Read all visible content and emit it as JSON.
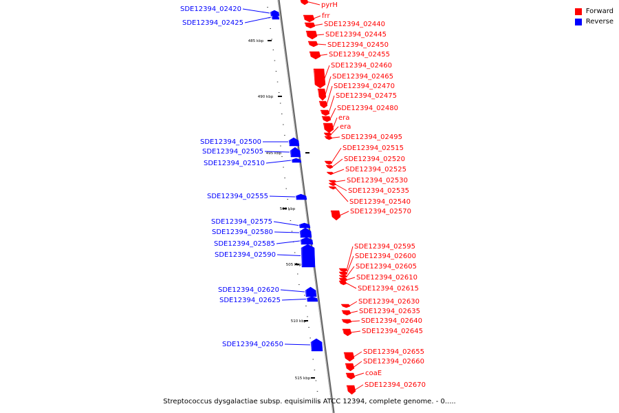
{
  "colors": {
    "forward": "#ff0000",
    "reverse": "#0000ff",
    "backbone": "#888888",
    "tick": "#000000"
  },
  "legend": [
    {
      "label": "Forward",
      "color": "#ff0000"
    },
    {
      "label": "Reverse",
      "color": "#0000ff"
    }
  ],
  "caption": "Streptococcus dysgalactiae subsp. equisimilis ATCC 12394, complete genome. - 0.....",
  "ticks": [
    "485 kbp",
    "490 kbp",
    "495 kbp",
    "500 kbp",
    "505 kbp",
    "510 kbp",
    "515 kbp"
  ],
  "forward_genes": [
    "pyrH",
    "frr",
    "SDE12394_02440",
    "SDE12394_02445",
    "SDE12394_02450",
    "SDE12394_02455",
    "SDE12394_02460",
    "SDE12394_02465",
    "SDE12394_02470",
    "SDE12394_02475",
    "SDE12394_02480",
    "era",
    "era",
    "SDE12394_02495",
    "SDE12394_02515",
    "SDE12394_02520",
    "SDE12394_02525",
    "SDE12394_02530",
    "SDE12394_02535",
    "SDE12394_02540",
    "SDE12394_02570",
    "SDE12394_02595",
    "SDE12394_02600",
    "SDE12394_02605",
    "SDE12394_02610",
    "SDE12394_02615",
    "SDE12394_02630",
    "SDE12394_02635",
    "SDE12394_02640",
    "SDE12394_02645",
    "SDE12394_02655",
    "SDE12394_02660",
    "coaE",
    "SDE12394_02670"
  ],
  "reverse_genes": [
    "SDE12394_02420",
    "SDE12394_02425",
    "SDE12394_02500",
    "SDE12394_02505",
    "SDE12394_02510",
    "SDE12394_02555",
    "SDE12394_02575",
    "SDE12394_02580",
    "SDE12394_02585",
    "SDE12394_02590",
    "SDE12394_02620",
    "SDE12394_02625",
    "SDE12394_02650"
  ]
}
